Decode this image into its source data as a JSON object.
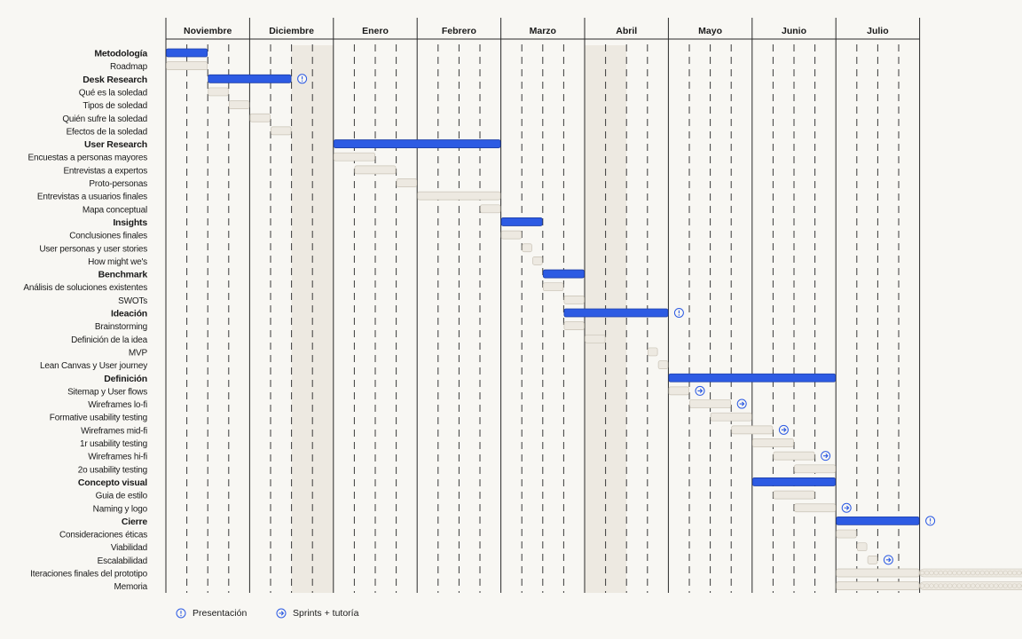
{
  "colors": {
    "phase": "#2d5be3",
    "task": "#ede9e1",
    "shade": "#ede9e1",
    "accent": "#2d5be3"
  },
  "chart_data": {
    "type": "gantt",
    "title": "",
    "months": [
      "Noviembre",
      "Diciembre",
      "Enero",
      "Febrero",
      "Marzo",
      "Abril",
      "Mayo",
      "Junio",
      "Julio"
    ],
    "weeks_per_month": 4,
    "shaded_weeks": [
      [
        6,
        8
      ],
      [
        20,
        22
      ]
    ],
    "rows": [
      {
        "label": "Metodología",
        "kind": "phase",
        "start": 0,
        "end": 2
      },
      {
        "label": "Roadmap",
        "kind": "task",
        "start": 0,
        "end": 2
      },
      {
        "label": "Desk Research",
        "kind": "phase",
        "start": 2,
        "end": 6,
        "marker": "presentation"
      },
      {
        "label": "Qué es la soledad",
        "kind": "task",
        "start": 2,
        "end": 3
      },
      {
        "label": "Tipos de soledad",
        "kind": "task",
        "start": 3,
        "end": 4
      },
      {
        "label": "Quién sufre la soledad",
        "kind": "task",
        "start": 4,
        "end": 5
      },
      {
        "label": "Efectos de la soledad",
        "kind": "task",
        "start": 5,
        "end": 6
      },
      {
        "label": "User Research",
        "kind": "phase",
        "start": 8,
        "end": 16
      },
      {
        "label": "Encuestas a personas mayores",
        "kind": "task",
        "start": 8,
        "end": 10
      },
      {
        "label": "Entrevistas a expertos",
        "kind": "task",
        "start": 9,
        "end": 11
      },
      {
        "label": "Proto-personas",
        "kind": "task",
        "start": 11,
        "end": 12
      },
      {
        "label": "Entrevistas a usuarios finales",
        "kind": "task",
        "start": 12,
        "end": 16
      },
      {
        "label": "Mapa conceptual",
        "kind": "task",
        "start": 15,
        "end": 16
      },
      {
        "label": "Insights",
        "kind": "phase",
        "start": 16,
        "end": 18
      },
      {
        "label": "Conclusiones finales",
        "kind": "task",
        "start": 16,
        "end": 17
      },
      {
        "label": "User personas y user stories",
        "kind": "task",
        "start": 17,
        "end": 17.5
      },
      {
        "label": "How might we's",
        "kind": "task",
        "start": 17.5,
        "end": 18
      },
      {
        "label": "Benchmark",
        "kind": "phase",
        "start": 18,
        "end": 20
      },
      {
        "label": "Análisis de soluciones existentes",
        "kind": "task",
        "start": 18,
        "end": 19
      },
      {
        "label": "SWOTs",
        "kind": "task",
        "start": 19,
        "end": 20
      },
      {
        "label": "Ideación",
        "kind": "phase",
        "start": 19,
        "end": 24,
        "marker": "presentation"
      },
      {
        "label": "Brainstorming",
        "kind": "task",
        "start": 19,
        "end": 20
      },
      {
        "label": "Definición de la idea",
        "kind": "task",
        "start": 20,
        "end": 21
      },
      {
        "label": "MVP",
        "kind": "task",
        "start": 23,
        "end": 23.5
      },
      {
        "label": "Lean Canvas y User journey",
        "kind": "task",
        "start": 23.5,
        "end": 24
      },
      {
        "label": "Definición",
        "kind": "phase",
        "start": 24,
        "end": 32
      },
      {
        "label": "Sitemap y User flows",
        "kind": "task",
        "start": 24,
        "end": 25,
        "marker": "sprint"
      },
      {
        "label": "Wireframes lo-fi",
        "kind": "task",
        "start": 25,
        "end": 27,
        "marker": "sprint"
      },
      {
        "label": "Formative usability testing",
        "kind": "task",
        "start": 26,
        "end": 28
      },
      {
        "label": "Wireframes mid-fi",
        "kind": "task",
        "start": 27,
        "end": 29,
        "marker": "sprint"
      },
      {
        "label": "1r usability testing",
        "kind": "task",
        "start": 28,
        "end": 30
      },
      {
        "label": "Wireframes hi-fi",
        "kind": "task",
        "start": 29,
        "end": 31,
        "marker": "sprint"
      },
      {
        "label": "2o usability testing",
        "kind": "task",
        "start": 30,
        "end": 32
      },
      {
        "label": "Concepto visual",
        "kind": "phase",
        "start": 28,
        "end": 32
      },
      {
        "label": "Guia de estilo",
        "kind": "task",
        "start": 29,
        "end": 31
      },
      {
        "label": "Naming y logo",
        "kind": "task",
        "start": 30,
        "end": 32,
        "marker": "sprint"
      },
      {
        "label": "Cierre",
        "kind": "phase",
        "start": 32,
        "end": 36,
        "marker": "presentation"
      },
      {
        "label": "Consideraciones éticas",
        "kind": "task",
        "start": 32,
        "end": 33
      },
      {
        "label": "Viabilidad",
        "kind": "task",
        "start": 33,
        "end": 33.5
      },
      {
        "label": "Escalabilidad",
        "kind": "task",
        "start": 33.5,
        "end": 34,
        "marker": "sprint"
      },
      {
        "label": "Iteraciones finales del prototipo",
        "kind": "task",
        "start": 32,
        "end": 36,
        "extension": 8
      },
      {
        "label": "Memoria",
        "kind": "task",
        "start": 32,
        "end": 36,
        "extension": 8
      }
    ],
    "legend": [
      {
        "marker": "presentation",
        "label": "Presentación"
      },
      {
        "marker": "sprint",
        "label": "Sprints + tutoría"
      }
    ]
  }
}
